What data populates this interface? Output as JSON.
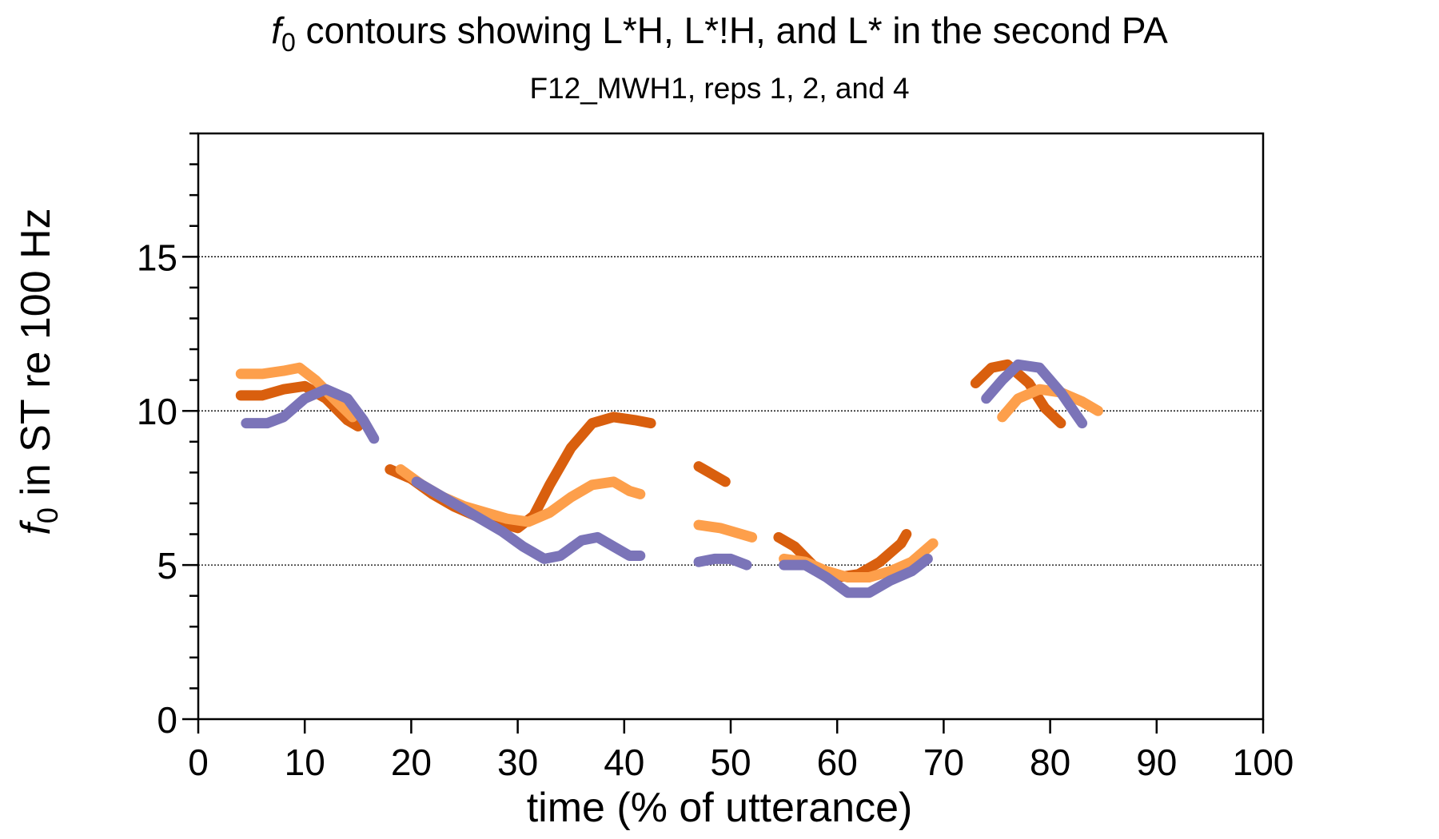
{
  "chart_data": {
    "type": "line",
    "title_prefix": "f",
    "title_sub": "0",
    "title_rest": " contours showing L*H, L*!H, and L* in the second PA",
    "subtitle": "F12_MWH1, reps 1, 2, and 4",
    "xlabel": "time (% of utterance)",
    "ylabel_prefix": "f",
    "ylabel_sub": "0",
    "ylabel_rest": " in ST re 100 Hz",
    "xlim": [
      0,
      100
    ],
    "ylim": [
      0,
      19
    ],
    "x_ticks": [
      0,
      10,
      20,
      30,
      40,
      50,
      60,
      70,
      80,
      90,
      100
    ],
    "x_tick_labels": [
      "0",
      "10",
      "20",
      "30",
      "40",
      "50",
      "60",
      "70",
      "80",
      "90",
      "100"
    ],
    "y_ticks": [
      0,
      5,
      10,
      15
    ],
    "y_tick_labels": [
      "0",
      "5",
      "10",
      "15"
    ],
    "y_minor_step": 1,
    "x_minor_step": 10,
    "gridlines_y": [
      5,
      10,
      15
    ],
    "grid": "dotted horizontal at labeled y ticks",
    "series": [
      {
        "color": "#D95F0E",
        "segments": [
          [
            [
              4,
              10.5
            ],
            [
              6,
              10.5
            ],
            [
              8,
              10.7
            ],
            [
              10,
              10.8
            ],
            [
              12,
              10.4
            ],
            [
              14,
              9.7
            ],
            [
              15,
              9.5
            ]
          ],
          [
            [
              18,
              8.1
            ],
            [
              20,
              7.8
            ],
            [
              22,
              7.3
            ],
            [
              24,
              6.9
            ],
            [
              26,
              6.6
            ],
            [
              28,
              6.4
            ],
            [
              30,
              6.2
            ],
            [
              31.5,
              6.6
            ],
            [
              33,
              7.6
            ],
            [
              35,
              8.8
            ],
            [
              37,
              9.6
            ],
            [
              39,
              9.8
            ],
            [
              41,
              9.7
            ],
            [
              42.5,
              9.6
            ]
          ],
          [
            [
              47,
              8.2
            ],
            [
              48.5,
              7.9
            ],
            [
              49.5,
              7.7
            ]
          ],
          [
            [
              54.5,
              5.9
            ],
            [
              56,
              5.6
            ],
            [
              58,
              4.9
            ],
            [
              60,
              4.6
            ],
            [
              62,
              4.7
            ],
            [
              64,
              5.1
            ],
            [
              66,
              5.7
            ],
            [
              66.5,
              6.0
            ]
          ],
          [
            [
              73,
              10.9
            ],
            [
              74.5,
              11.4
            ],
            [
              76,
              11.5
            ],
            [
              78,
              10.9
            ],
            [
              79.5,
              10.1
            ],
            [
              81,
              9.6
            ]
          ]
        ]
      },
      {
        "color": "#FD9F4B",
        "segments": [
          [
            [
              4,
              11.2
            ],
            [
              6,
              11.2
            ],
            [
              8,
              11.3
            ],
            [
              9.5,
              11.4
            ],
            [
              11,
              11.0
            ],
            [
              13,
              10.3
            ],
            [
              14.5,
              9.8
            ]
          ],
          [
            [
              19,
              8.1
            ],
            [
              21,
              7.6
            ],
            [
              23,
              7.2
            ],
            [
              25,
              6.9
            ],
            [
              27,
              6.7
            ],
            [
              29,
              6.5
            ],
            [
              31,
              6.4
            ],
            [
              33,
              6.7
            ],
            [
              35,
              7.2
            ],
            [
              37,
              7.6
            ],
            [
              39,
              7.7
            ],
            [
              40.5,
              7.4
            ],
            [
              41.5,
              7.3
            ]
          ],
          [
            [
              47,
              6.3
            ],
            [
              49,
              6.2
            ],
            [
              51,
              6.0
            ],
            [
              52,
              5.9
            ]
          ],
          [
            [
              55,
              5.2
            ],
            [
              57,
              5.1
            ],
            [
              59,
              4.8
            ],
            [
              61,
              4.6
            ],
            [
              63,
              4.6
            ],
            [
              65,
              4.8
            ],
            [
              67,
              5.1
            ],
            [
              69,
              5.7
            ]
          ],
          [
            [
              75.5,
              9.8
            ],
            [
              77,
              10.4
            ],
            [
              79,
              10.7
            ],
            [
              81,
              10.6
            ],
            [
              83,
              10.3
            ],
            [
              84.5,
              10.0
            ]
          ]
        ]
      },
      {
        "color": "#7B74B8",
        "segments": [
          [
            [
              4.5,
              9.6
            ],
            [
              6.5,
              9.6
            ],
            [
              8,
              9.8
            ],
            [
              10,
              10.4
            ],
            [
              12,
              10.7
            ],
            [
              14,
              10.4
            ],
            [
              15.5,
              9.7
            ],
            [
              16.5,
              9.1
            ]
          ],
          [
            [
              20.5,
              7.7
            ],
            [
              22.5,
              7.3
            ],
            [
              24.5,
              6.9
            ],
            [
              26.5,
              6.5
            ],
            [
              28.5,
              6.1
            ],
            [
              30.5,
              5.6
            ],
            [
              32.5,
              5.2
            ],
            [
              34,
              5.3
            ],
            [
              36,
              5.8
            ],
            [
              37.5,
              5.9
            ],
            [
              39,
              5.6
            ],
            [
              40.5,
              5.3
            ],
            [
              41.5,
              5.3
            ]
          ],
          [
            [
              47,
              5.1
            ],
            [
              48.5,
              5.2
            ],
            [
              50,
              5.2
            ],
            [
              51.5,
              5.0
            ]
          ],
          [
            [
              55,
              5.0
            ],
            [
              57,
              5.0
            ],
            [
              59,
              4.6
            ],
            [
              61,
              4.1
            ],
            [
              63,
              4.1
            ],
            [
              65,
              4.5
            ],
            [
              67,
              4.8
            ],
            [
              68.5,
              5.2
            ]
          ],
          [
            [
              74,
              10.4
            ],
            [
              75.5,
              11.0
            ],
            [
              77,
              11.5
            ],
            [
              79,
              11.4
            ],
            [
              81,
              10.6
            ],
            [
              83,
              9.6
            ]
          ]
        ]
      }
    ]
  }
}
